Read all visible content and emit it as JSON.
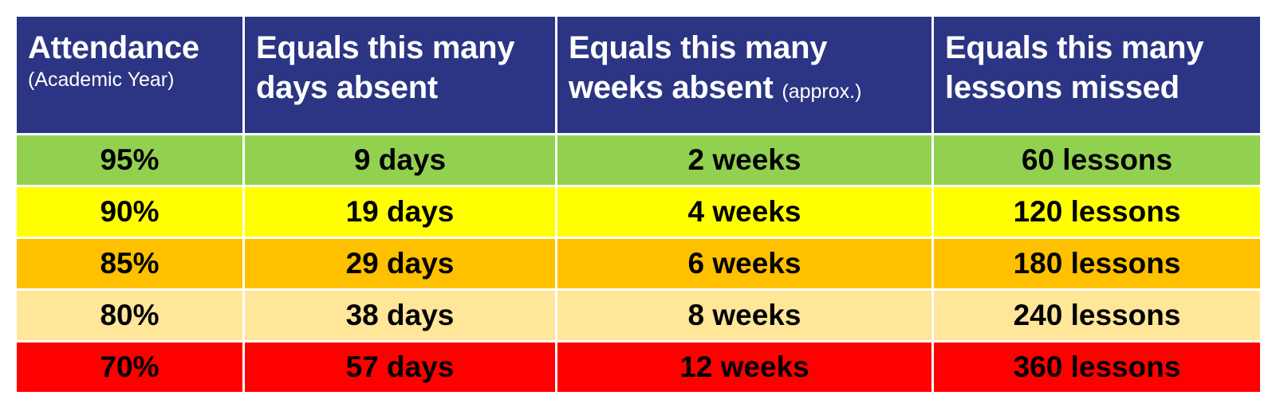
{
  "table": {
    "headers": [
      {
        "main": "Attendance",
        "sub": "(Academic Year)"
      },
      {
        "main_line1": "Equals this many",
        "main_line2": "days absent"
      },
      {
        "main_line1": "Equals this many",
        "main_line2": "weeks absent",
        "sub": "(approx.)"
      },
      {
        "main_line1": "Equals this many",
        "main_line2": "lessons missed"
      }
    ],
    "rows": [
      {
        "attendance": "95%",
        "days": "9 days",
        "weeks": "2 weeks",
        "lessons": "60 lessons",
        "color": "#92d050"
      },
      {
        "attendance": "90%",
        "days": "19 days",
        "weeks": "4 weeks",
        "lessons": "120 lessons",
        "color": "#ffff00"
      },
      {
        "attendance": "85%",
        "days": "29 days",
        "weeks": "6 weeks",
        "lessons": "180 lessons",
        "color": "#ffc000"
      },
      {
        "attendance": "80%",
        "days": "38 days",
        "weeks": "8 weeks",
        "lessons": "240 lessons",
        "color": "#ffe699"
      },
      {
        "attendance": "70%",
        "days": "57 days",
        "weeks": "12 weeks",
        "lessons": "360 lessons",
        "color": "#ff0000"
      }
    ],
    "header_color": "#2b3583"
  }
}
